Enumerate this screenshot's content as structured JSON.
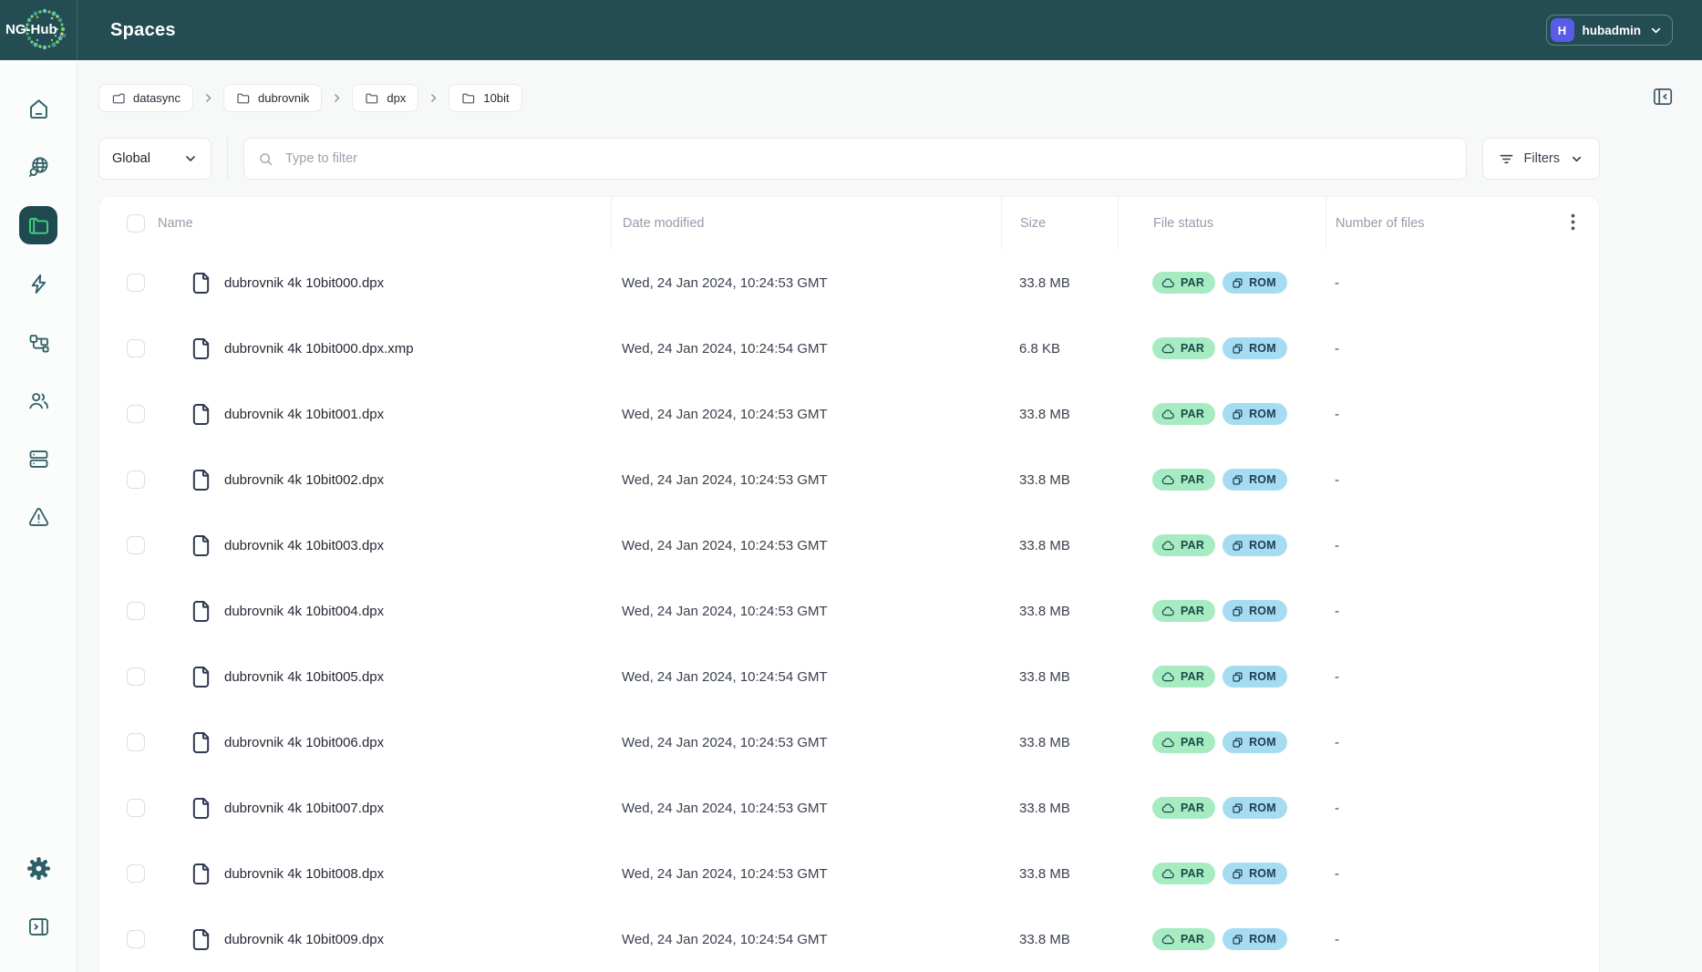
{
  "colors": {
    "header_bg": "#244C53",
    "sidebar_active_bg": "#1E4A50",
    "accent_green": "#3FD37E",
    "avatar_bg": "#5A5BE8",
    "badge_par_bg": "#A7EBC3",
    "badge_par_text": "#1C4A48",
    "badge_rom_bg": "#A6DCF2",
    "badge_rom_text": "#1E3C52"
  },
  "header": {
    "logo_text": "NG-Hub",
    "title": "Spaces",
    "user": {
      "avatar_initial": "H",
      "name": "hubadmin",
      "menu_icon": "chevron-down-icon"
    }
  },
  "sidebar": {
    "items": [
      {
        "icon": "home-icon",
        "active": false
      },
      {
        "icon": "globe-search-icon",
        "active": false
      },
      {
        "icon": "folder-icon",
        "active": true
      },
      {
        "icon": "lightning-icon",
        "active": false
      },
      {
        "icon": "blocks-icon",
        "active": false
      },
      {
        "icon": "users-icon",
        "active": false
      },
      {
        "icon": "server-icon",
        "active": false
      },
      {
        "icon": "warning-icon",
        "active": false
      }
    ],
    "bottom_items": [
      {
        "icon": "gear-icon"
      },
      {
        "icon": "panel-expand-icon"
      }
    ]
  },
  "breadcrumbs": [
    {
      "label": "datasync",
      "icon": "space-folder-icon"
    },
    {
      "label": "dubrovnik",
      "icon": "folder-icon"
    },
    {
      "label": "dpx",
      "icon": "folder-icon"
    },
    {
      "label": "10bit",
      "icon": "folder-icon"
    }
  ],
  "toolbar": {
    "scope_selector": "Global",
    "search_placeholder": "Type to filter",
    "filters_label": "Filters"
  },
  "table": {
    "columns": [
      "Name",
      "Date modified",
      "Size",
      "File status",
      "Number of files"
    ],
    "rows": [
      {
        "name": "dubrovnik 4k 10bit000.dpx",
        "date_modified": "Wed, 24 Jan 2024, 10:24:53 GMT",
        "size": "33.8 MB",
        "statuses": [
          "PAR",
          "ROM"
        ],
        "number_of_files": "-"
      },
      {
        "name": "dubrovnik 4k 10bit000.dpx.xmp",
        "date_modified": "Wed, 24 Jan 2024, 10:24:54 GMT",
        "size": "6.8 KB",
        "statuses": [
          "PAR",
          "ROM"
        ],
        "number_of_files": "-"
      },
      {
        "name": "dubrovnik 4k 10bit001.dpx",
        "date_modified": "Wed, 24 Jan 2024, 10:24:53 GMT",
        "size": "33.8 MB",
        "statuses": [
          "PAR",
          "ROM"
        ],
        "number_of_files": "-"
      },
      {
        "name": "dubrovnik 4k 10bit002.dpx",
        "date_modified": "Wed, 24 Jan 2024, 10:24:53 GMT",
        "size": "33.8 MB",
        "statuses": [
          "PAR",
          "ROM"
        ],
        "number_of_files": "-"
      },
      {
        "name": "dubrovnik 4k 10bit003.dpx",
        "date_modified": "Wed, 24 Jan 2024, 10:24:53 GMT",
        "size": "33.8 MB",
        "statuses": [
          "PAR",
          "ROM"
        ],
        "number_of_files": "-"
      },
      {
        "name": "dubrovnik 4k 10bit004.dpx",
        "date_modified": "Wed, 24 Jan 2024, 10:24:53 GMT",
        "size": "33.8 MB",
        "statuses": [
          "PAR",
          "ROM"
        ],
        "number_of_files": "-"
      },
      {
        "name": "dubrovnik 4k 10bit005.dpx",
        "date_modified": "Wed, 24 Jan 2024, 10:24:54 GMT",
        "size": "33.8 MB",
        "statuses": [
          "PAR",
          "ROM"
        ],
        "number_of_files": "-"
      },
      {
        "name": "dubrovnik 4k 10bit006.dpx",
        "date_modified": "Wed, 24 Jan 2024, 10:24:53 GMT",
        "size": "33.8 MB",
        "statuses": [
          "PAR",
          "ROM"
        ],
        "number_of_files": "-"
      },
      {
        "name": "dubrovnik 4k 10bit007.dpx",
        "date_modified": "Wed, 24 Jan 2024, 10:24:53 GMT",
        "size": "33.8 MB",
        "statuses": [
          "PAR",
          "ROM"
        ],
        "number_of_files": "-"
      },
      {
        "name": "dubrovnik 4k 10bit008.dpx",
        "date_modified": "Wed, 24 Jan 2024, 10:24:53 GMT",
        "size": "33.8 MB",
        "statuses": [
          "PAR",
          "ROM"
        ],
        "number_of_files": "-"
      },
      {
        "name": "dubrovnik 4k 10bit009.dpx",
        "date_modified": "Wed, 24 Jan 2024, 10:24:54 GMT",
        "size": "33.8 MB",
        "statuses": [
          "PAR",
          "ROM"
        ],
        "number_of_files": "-"
      }
    ]
  }
}
